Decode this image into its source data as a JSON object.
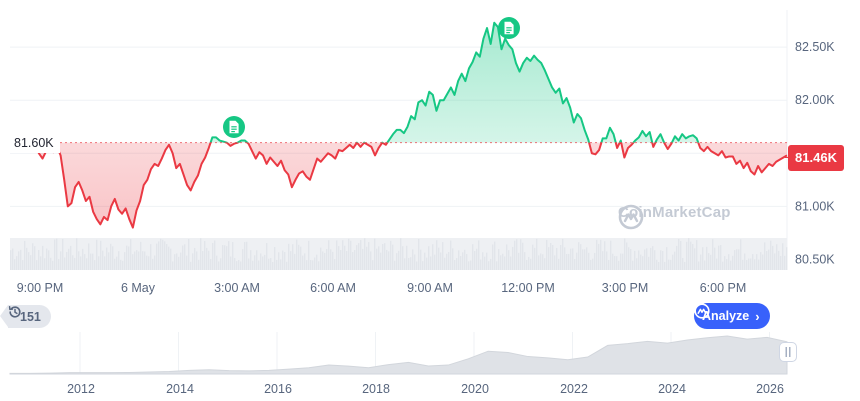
{
  "chart_data": [
    {
      "type": "line",
      "title": "",
      "xlabel": "",
      "ylabel": "",
      "x_tick_labels": [
        "9:00 PM",
        "6 May",
        "3:00 AM",
        "6:00 AM",
        "9:00 AM",
        "12:00 PM",
        "3:00 PM",
        "6:00 PM"
      ],
      "y_ticks": [
        80500,
        81000,
        81500,
        82000,
        82500
      ],
      "y_tick_labels": [
        "80.50K",
        "81.00K",
        "81.50K",
        "82.00K",
        "82.50K"
      ],
      "ylim": [
        80400,
        82850
      ],
      "baseline": 81600,
      "baseline_label": "81.60K",
      "current_price": 81460,
      "current_price_label": "81.46K",
      "grid": "horizontal",
      "series": [
        {
          "values": [
            81650,
            81680,
            81540,
            81520,
            81580,
            81560,
            81600,
            81570,
            81500,
            81450,
            81520,
            81560,
            81510,
            81560,
            81480,
            81250,
            81000,
            81030,
            81180,
            81230,
            81150,
            81050,
            81090,
            80950,
            80880,
            80830,
            80900,
            80870,
            81000,
            81070,
            80970,
            80930,
            80980,
            80880,
            80800,
            80960,
            81050,
            81200,
            81250,
            81350,
            81400,
            81380,
            81450,
            81530,
            81580,
            81500,
            81360,
            81400,
            81300,
            81200,
            81150,
            81230,
            81290,
            81400,
            81460,
            81550,
            81650,
            81650,
            81620,
            81610,
            81600,
            81570,
            81590,
            81600,
            81620,
            81620,
            81590,
            81520,
            81450,
            81510,
            81480,
            81400,
            81460,
            81420,
            81380,
            81430,
            81340,
            81300,
            81180,
            81250,
            81310,
            81330,
            81280,
            81250,
            81350,
            81450,
            81420,
            81460,
            81500,
            81480,
            81450,
            81530,
            81520,
            81550,
            81580,
            81550,
            81600,
            81560,
            81600,
            81580,
            81560,
            81480,
            81550,
            81600,
            81580,
            81630,
            81680,
            81720,
            81720,
            81690,
            81750,
            81850,
            81820,
            81980,
            82000,
            81950,
            82080,
            82050,
            81900,
            82000,
            82000,
            82060,
            82120,
            82050,
            82180,
            82250,
            82180,
            82300,
            82360,
            82450,
            82410,
            82580,
            82680,
            82530,
            82730,
            82690,
            82480,
            82580,
            82520,
            82480,
            82350,
            82270,
            82350,
            82400,
            82370,
            82420,
            82380,
            82350,
            82280,
            82200,
            82120,
            82070,
            82110,
            81970,
            82020,
            81930,
            81790,
            81870,
            81830,
            81720,
            81630,
            81500,
            81490,
            81530,
            81640,
            81640,
            81740,
            81680,
            81550,
            81620,
            81460,
            81550,
            81580,
            81620,
            81650,
            81710,
            81660,
            81700,
            81560,
            81630,
            81680,
            81600,
            81540,
            81590,
            81660,
            81620,
            81680,
            81640,
            81660,
            81670,
            81640,
            81550,
            81520,
            81560,
            81520,
            81500,
            81480,
            81520,
            81460,
            81470,
            81470,
            81400,
            81430,
            81360,
            81410,
            81330,
            81300,
            81380,
            81320,
            81360,
            81400,
            81380,
            81420,
            81440,
            81460,
            81480
          ]
        }
      ],
      "markers": [
        {
          "icon": "document-icon",
          "index": 62
        },
        {
          "icon": "document-icon",
          "index": 138
        }
      ]
    },
    {
      "type": "area",
      "title": "",
      "x_tick_labels": [
        "2012",
        "2014",
        "2016",
        "2018",
        "2020",
        "2022",
        "2024",
        "2026"
      ],
      "series": [
        {
          "values": [
            0.3,
            0.3,
            0.4,
            0.6,
            0.6,
            0.6,
            0.7,
            0.9,
            1.1,
            1.6,
            1.9,
            1.5,
            1.4,
            1.6,
            2.2,
            2.8,
            4.0,
            3.5,
            2.8,
            4.2,
            5.2,
            3.6,
            4.0,
            6.8,
            10.2,
            9.6,
            7.8,
            7.2,
            6.4,
            7.6,
            12.8,
            13.6,
            14.6,
            13.8,
            15.2,
            16.2,
            17.0,
            15.6,
            16.4,
            14.4
          ]
        }
      ]
    }
  ],
  "colors": {
    "up": "#16c784",
    "down": "#ea3943",
    "axis_text": "#58667e",
    "accent": "#3861fb"
  },
  "history_chip": {
    "icon": "history-icon",
    "label": "151"
  },
  "analyze_button": {
    "icon": "analyze-icon",
    "label": "Analyze",
    "chevron": "›"
  },
  "watermark": {
    "icon": "coinmarketcap-logo-icon",
    "label": "CoinMarketCap"
  }
}
